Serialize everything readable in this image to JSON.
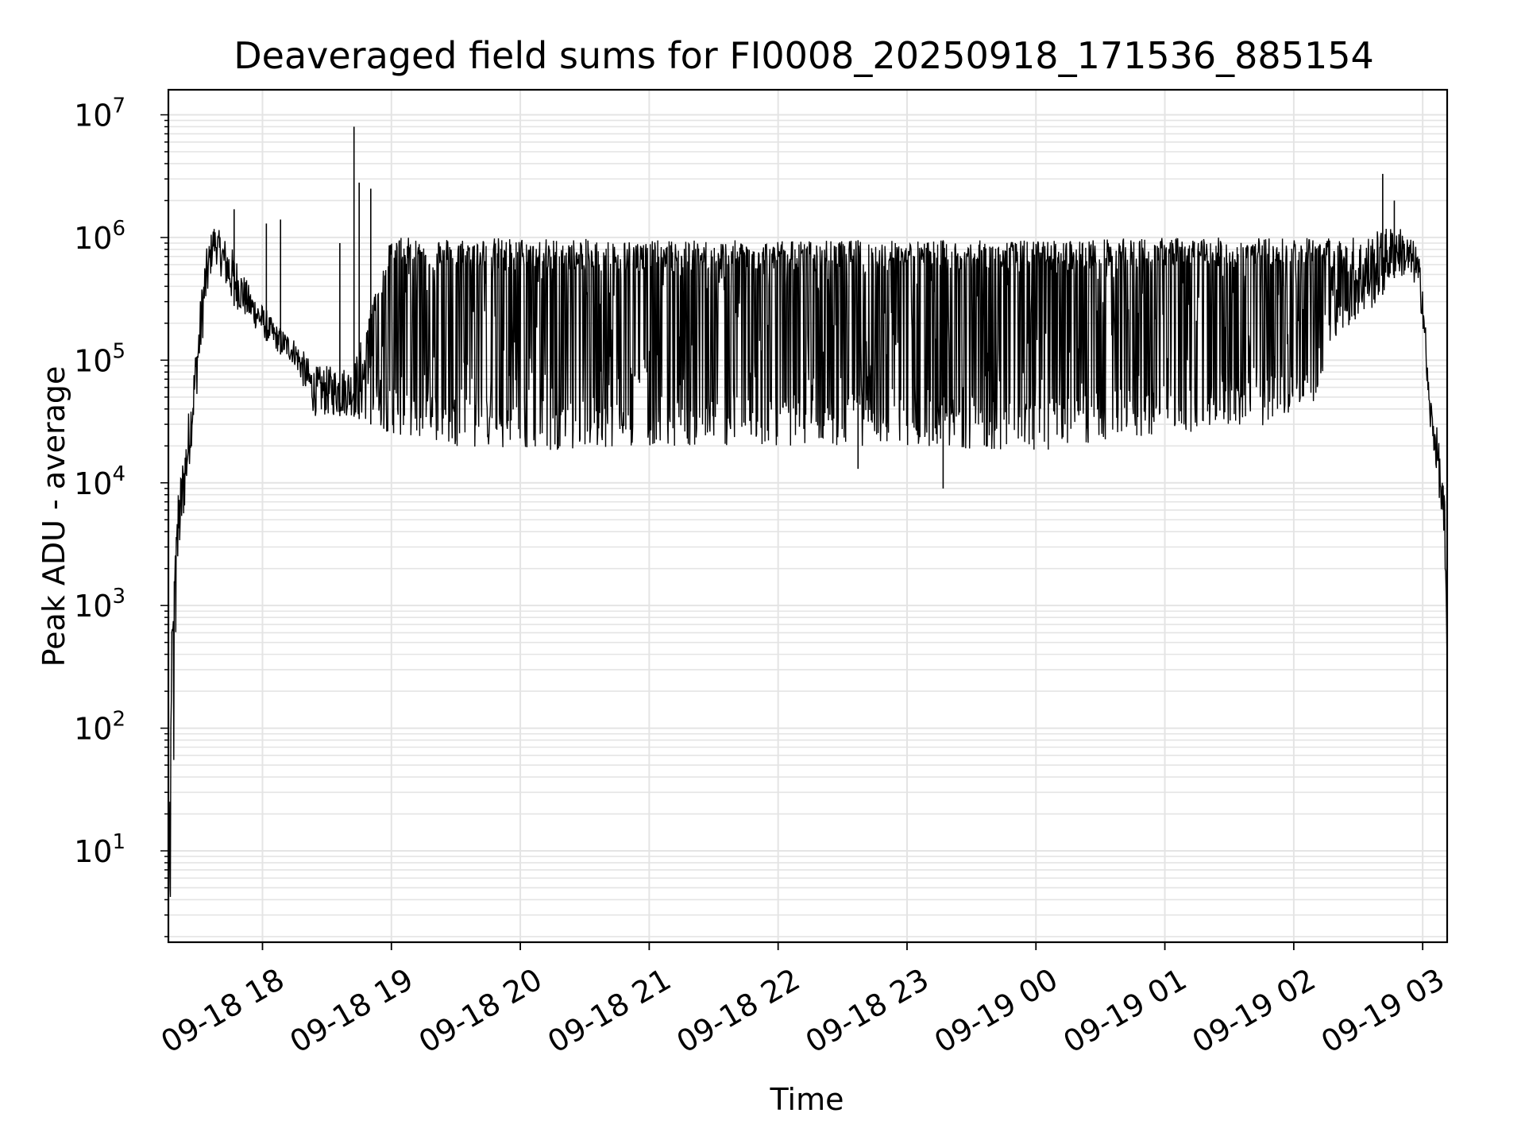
{
  "chart_data": {
    "type": "line",
    "title": "Deaveraged field sums for FI0008_20250918_171536_885154",
    "xlabel": "Time",
    "ylabel": "Peak ADU - average",
    "yscale": "log",
    "ylim": [
      1.8,
      16000000
    ],
    "xlim_hours_from_0918_00": [
      17.27,
      27.19
    ],
    "grid": true,
    "line_color": "#000000",
    "x_ticks": [
      {
        "label": "09-18 18",
        "hour": 18
      },
      {
        "label": "09-18 19",
        "hour": 19
      },
      {
        "label": "09-18 20",
        "hour": 20
      },
      {
        "label": "09-18 21",
        "hour": 21
      },
      {
        "label": "09-18 22",
        "hour": 22
      },
      {
        "label": "09-18 23",
        "hour": 23
      },
      {
        "label": "09-19 00",
        "hour": 24
      },
      {
        "label": "09-19 01",
        "hour": 25
      },
      {
        "label": "09-19 02",
        "hour": 26
      },
      {
        "label": "09-19 03",
        "hour": 27
      }
    ],
    "y_ticks": [
      {
        "base": "10",
        "exp": "1",
        "value": 10
      },
      {
        "base": "10",
        "exp": "2",
        "value": 100
      },
      {
        "base": "10",
        "exp": "3",
        "value": 1000
      },
      {
        "base": "10",
        "exp": "4",
        "value": 10000
      },
      {
        "base": "10",
        "exp": "5",
        "value": 100000
      },
      {
        "base": "10",
        "exp": "6",
        "value": 1000000
      },
      {
        "base": "10",
        "exp": "7",
        "value": 10000000
      }
    ],
    "series": [
      {
        "name": "deaveraged field sum",
        "envelope": [
          {
            "x": 17.27,
            "lo": 3.5,
            "hi": 4
          },
          {
            "x": 17.29,
            "lo": 3.6,
            "hi": 500
          },
          {
            "x": 17.35,
            "lo": 2000,
            "hi": 10000
          },
          {
            "x": 17.45,
            "lo": 20000,
            "hi": 60000
          },
          {
            "x": 17.55,
            "lo": 200000,
            "hi": 700000
          },
          {
            "x": 17.62,
            "lo": 700000,
            "hi": 1300000
          },
          {
            "x": 17.75,
            "lo": 300000,
            "hi": 900000
          },
          {
            "x": 17.9,
            "lo": 200000,
            "hi": 400000
          },
          {
            "x": 18.1,
            "lo": 120000,
            "hi": 200000
          },
          {
            "x": 18.25,
            "lo": 90000,
            "hi": 150000
          },
          {
            "x": 18.4,
            "lo": 35000,
            "hi": 90000
          },
          {
            "x": 18.7,
            "lo": 35000,
            "hi": 90000
          },
          {
            "x": 19.0,
            "lo": 25000,
            "hi": 1000000
          },
          {
            "x": 19.5,
            "lo": 20000,
            "hi": 1000000
          },
          {
            "x": 20.0,
            "lo": 18000,
            "hi": 1000000
          },
          {
            "x": 21.0,
            "lo": 20000,
            "hi": 950000
          },
          {
            "x": 22.0,
            "lo": 20000,
            "hi": 950000
          },
          {
            "x": 23.0,
            "lo": 20000,
            "hi": 950000
          },
          {
            "x": 24.0,
            "lo": 18000,
            "hi": 950000
          },
          {
            "x": 25.0,
            "lo": 25000,
            "hi": 1000000
          },
          {
            "x": 25.9,
            "lo": 30000,
            "hi": 1000000
          },
          {
            "x": 26.2,
            "lo": 50000,
            "hi": 1000000
          },
          {
            "x": 26.3,
            "lo": 150000,
            "hi": 1000000
          },
          {
            "x": 26.6,
            "lo": 250000,
            "hi": 1100000
          },
          {
            "x": 26.8,
            "lo": 500000,
            "hi": 1300000
          },
          {
            "x": 26.95,
            "lo": 400000,
            "hi": 900000
          },
          {
            "x": 27.0,
            "lo": 200000,
            "hi": 500000
          },
          {
            "x": 27.05,
            "lo": 30000,
            "hi": 60000
          },
          {
            "x": 27.12,
            "lo": 10000,
            "hi": 25000
          },
          {
            "x": 27.17,
            "lo": 2000,
            "hi": 8000
          },
          {
            "x": 27.19,
            "lo": 300,
            "hi": 500
          }
        ],
        "spikes": [
          {
            "x": 17.78,
            "y": 1700000
          },
          {
            "x": 18.03,
            "y": 1300000
          },
          {
            "x": 18.14,
            "y": 1400000
          },
          {
            "x": 18.6,
            "y": 900000
          },
          {
            "x": 18.71,
            "y": 8000000
          },
          {
            "x": 18.75,
            "y": 2800000
          },
          {
            "x": 18.84,
            "y": 2500000
          },
          {
            "x": 26.69,
            "y": 3300000
          },
          {
            "x": 26.78,
            "y": 2000000
          }
        ],
        "dips": [
          {
            "x": 23.28,
            "y": 9000
          },
          {
            "x": 22.62,
            "y": 13000
          }
        ]
      }
    ]
  }
}
